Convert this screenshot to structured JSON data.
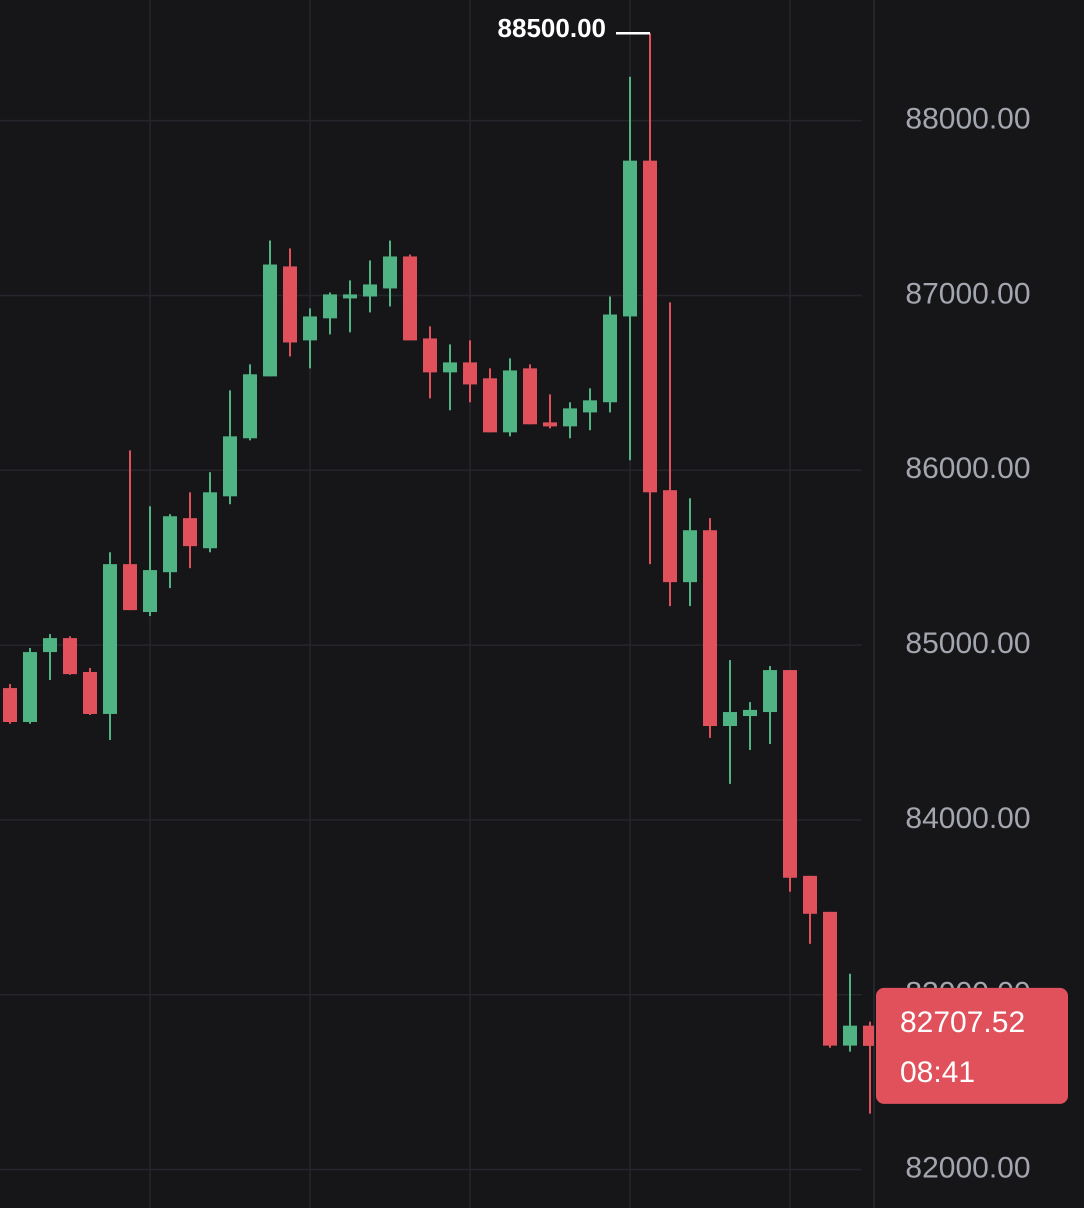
{
  "chart_data": {
    "type": "candlestick",
    "up_color": "#4fb383",
    "down_color": "#e0515c",
    "grid": true,
    "ylim": [
      81780,
      88690
    ],
    "yticks": [
      {
        "value": 82000,
        "label": "82000.00"
      },
      {
        "value": 83000,
        "label": "83000.00"
      },
      {
        "value": 84000,
        "label": "84000.00"
      },
      {
        "value": 85000,
        "label": "85000.00"
      },
      {
        "value": 86000,
        "label": "86000.00"
      },
      {
        "value": 87000,
        "label": "87000.00"
      },
      {
        "value": 88000,
        "label": "88000.00"
      }
    ],
    "open": [
      84754,
      84560,
      84960,
      85040,
      84846,
      84606,
      85463,
      85189,
      85417,
      85726,
      85554,
      85851,
      86183,
      86537,
      87166,
      86743,
      86869,
      86983,
      86994,
      87040,
      87223,
      86754,
      86560,
      86617,
      86526,
      86217,
      86583,
      86274,
      86251,
      86331,
      86389,
      86880,
      87771,
      85886,
      85360,
      85657,
      84537,
      84594,
      84617,
      84857,
      83680,
      83474,
      82709,
      82823
    ],
    "high": [
      84777,
      84983,
      85063,
      85050,
      84869,
      85531,
      86114,
      85794,
      85749,
      85874,
      85989,
      86457,
      86606,
      87314,
      87269,
      86926,
      87017,
      87086,
      87200,
      87314,
      87234,
      86823,
      86720,
      86743,
      86583,
      86640,
      86606,
      86434,
      86389,
      86469,
      86994,
      88251,
      88500,
      86960,
      85840,
      85726,
      84914,
      84674,
      84880,
      84857,
      83680,
      83474,
      83120,
      82846
    ],
    "low": [
      84550,
      84550,
      84800,
      84830,
      84600,
      84457,
      85200,
      85166,
      85326,
      85440,
      85531,
      85806,
      86171,
      86537,
      86651,
      86583,
      86777,
      86789,
      86903,
      86937,
      86743,
      86411,
      86343,
      86389,
      86217,
      86194,
      86263,
      86240,
      86183,
      86229,
      86331,
      86057,
      85463,
      85223,
      85223,
      84469,
      84206,
      84400,
      84434,
      83589,
      83291,
      82697,
      82674,
      82320
    ],
    "close": [
      84560,
      84960,
      85040,
      84834,
      84606,
      85463,
      85200,
      85429,
      85737,
      85566,
      85874,
      86194,
      86549,
      87177,
      86731,
      86880,
      87006,
      87006,
      87063,
      87223,
      86743,
      86560,
      86617,
      86491,
      86217,
      86571,
      86263,
      86251,
      86354,
      86400,
      86891,
      87771,
      85874,
      85360,
      85657,
      84537,
      84617,
      84629,
      84857,
      83669,
      83463,
      82709,
      82823,
      82707.52
    ],
    "high_marker": {
      "value": 88500,
      "label": "88500.00"
    },
    "last_price": 82707.52,
    "countdown": "08:41"
  }
}
